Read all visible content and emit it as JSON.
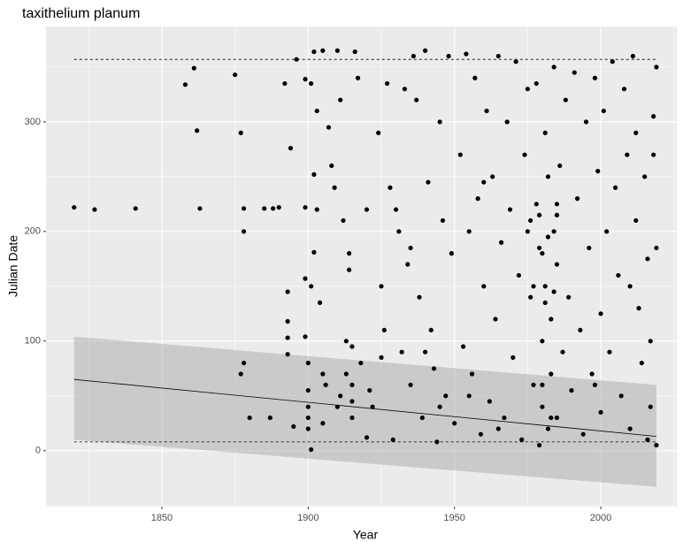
{
  "chart_data": {
    "type": "scatter",
    "title": "taxithelium planum",
    "x_label": "Year",
    "y_label": "Julian Date",
    "xlim": [
      1810.4,
      2026
    ],
    "ylim": [
      -51,
      387
    ],
    "xticks": [
      1850,
      1900,
      1950,
      2000
    ],
    "yticks": [
      0,
      100,
      200,
      300
    ],
    "xminor": [
      1825,
      1875,
      1925,
      1975,
      2025
    ],
    "yminor": [
      -50,
      50,
      150,
      250,
      350
    ],
    "grid": true,
    "color": "#000000",
    "x": [
      1820,
      1827,
      1841,
      1858,
      1861,
      1862,
      1863,
      1875,
      1877,
      1878,
      1878,
      1877,
      1878,
      1880,
      1885,
      1887,
      1888,
      1890,
      1892,
      1893,
      1893,
      1893,
      1893,
      1894,
      1896,
      1895,
      1899,
      1899,
      1899,
      1899,
      1900,
      1900,
      1900,
      1900,
      1900,
      1901,
      1901,
      1901,
      1902,
      1902,
      1902,
      1903,
      1903,
      1904,
      1905,
      1905,
      1906,
      1907,
      1908,
      1909,
      1910,
      1911,
      1911,
      1912,
      1913,
      1913,
      1914,
      1914,
      1915,
      1915,
      1915,
      1916,
      1917,
      1918,
      1920,
      1921,
      1922,
      1924,
      1925,
      1926,
      1927,
      1928,
      1929,
      1930,
      1931,
      1932,
      1933,
      1934,
      1935,
      1936,
      1937,
      1938,
      1939,
      1940,
      1941,
      1942,
      1943,
      1944,
      1945,
      1946,
      1947,
      1948,
      1949,
      1950,
      1952,
      1953,
      1954,
      1955,
      1956,
      1957,
      1958,
      1959,
      1960,
      1961,
      1962,
      1963,
      1964,
      1965,
      1966,
      1967,
      1968,
      1969,
      1970,
      1971,
      1972,
      1973,
      1974,
      1975,
      1976,
      1977,
      1978,
      1979,
      1980,
      1980,
      1980,
      1981,
      1981,
      1982,
      1982,
      1983,
      1983,
      1984,
      1984,
      1985,
      1985,
      1986,
      1987,
      1988,
      1989,
      1990,
      1991,
      1992,
      1993,
      1994,
      1995,
      1996,
      1997,
      1998,
      1999,
      2000,
      2000,
      2001,
      2002,
      2003,
      2004,
      2005,
      2006,
      2007,
      2008,
      2009,
      2010,
      2010,
      2011,
      2012,
      2013,
      2014,
      2015,
      2016,
      2017,
      2018,
      2019,
      2019,
      2019,
      2018,
      2017,
      2016,
      2012,
      1998,
      1985,
      1979,
      1975,
      1965,
      1960,
      1955,
      1945,
      1940,
      1935,
      1925,
      1915,
      1910,
      1905,
      1920,
      1976,
      1977,
      1978,
      1979,
      1980,
      1981,
      1982,
      1983,
      1984,
      1985
    ],
    "values": [
      222,
      220,
      221,
      334,
      349,
      292,
      221,
      343,
      290,
      221,
      200,
      70,
      80,
      30,
      221,
      30,
      221,
      222,
      335,
      145,
      118,
      103,
      88,
      276,
      357,
      22,
      339,
      222,
      157,
      104,
      80,
      55,
      40,
      30,
      20,
      150,
      335,
      1,
      364,
      252,
      181,
      310,
      220,
      135,
      365,
      70,
      60,
      295,
      260,
      240,
      365,
      320,
      50,
      210,
      100,
      70,
      180,
      165,
      60,
      45,
      30,
      364,
      340,
      80,
      220,
      55,
      40,
      290,
      150,
      110,
      335,
      240,
      10,
      220,
      200,
      90,
      330,
      170,
      60,
      360,
      320,
      140,
      30,
      365,
      245,
      110,
      75,
      8,
      300,
      210,
      50,
      360,
      180,
      25,
      270,
      95,
      362,
      200,
      70,
      340,
      230,
      15,
      150,
      310,
      45,
      250,
      120,
      360,
      190,
      30,
      300,
      220,
      85,
      355,
      160,
      10,
      270,
      200,
      140,
      60,
      335,
      215,
      180,
      100,
      40,
      290,
      150,
      250,
      20,
      120,
      70,
      350,
      200,
      170,
      30,
      260,
      90,
      320,
      140,
      55,
      345,
      230,
      110,
      15,
      300,
      185,
      70,
      340,
      255,
      125,
      35,
      310,
      200,
      90,
      355,
      240,
      160,
      50,
      330,
      270,
      150,
      20,
      360,
      290,
      130,
      80,
      250,
      175,
      40,
      305,
      185,
      350,
      5,
      270,
      100,
      10,
      210,
      60,
      225,
      5,
      330,
      20,
      245,
      50,
      40,
      90,
      185,
      85,
      95,
      40,
      25,
      12,
      210,
      150,
      225,
      185,
      60,
      135,
      195,
      30,
      145,
      215
    ],
    "trend": {
      "x": [
        1820,
        2019
      ],
      "values": [
        65,
        13
      ],
      "lower": [
        10,
        -33
      ],
      "upper": [
        104,
        60
      ]
    },
    "quantile_lines": [
      {
        "x": [
          1820,
          2019
        ],
        "values": [
          357,
          357
        ]
      },
      {
        "x": [
          1820,
          2019
        ],
        "values": [
          8,
          8
        ]
      }
    ]
  }
}
